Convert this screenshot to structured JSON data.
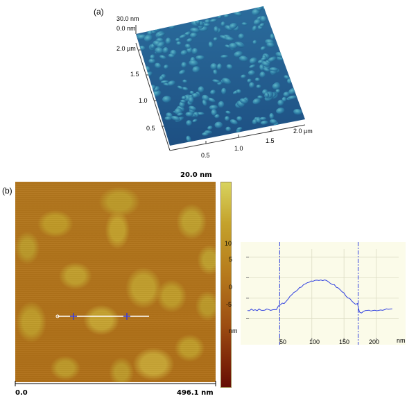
{
  "panel_a": {
    "label": "(a)",
    "z_labels": [
      "30.0 nm",
      "0.0 nm"
    ],
    "y_ticks": [
      "2.0 µm",
      "1.5",
      "1.0",
      "0.5"
    ],
    "x_ticks": [
      "0.5",
      "1.0",
      "1.5",
      "2.0 µm"
    ],
    "surface_color": "#2b6c9c"
  },
  "panel_b": {
    "label": "(b)",
    "scale_max": "20.0 nm",
    "scan_x_start": "0.0",
    "scan_x_end": "496.1 nm",
    "colors": {
      "scale_top": "#d8d35e",
      "scale_bottom": "#650c04",
      "line": "#ffffff",
      "markers": "#3a3ad0"
    }
  },
  "profile": {
    "y_ticks": [
      "10",
      "5",
      "0",
      "-5"
    ],
    "y_unit": "nm",
    "x_ticks": [
      "50",
      "100",
      "150",
      "200"
    ],
    "x_unit": "nm",
    "cursor_x": [
      50,
      172
    ],
    "colors": {
      "background": "#fbfbe9",
      "grid": "#dcdcc4",
      "line": "#3040e0"
    }
  }
}
